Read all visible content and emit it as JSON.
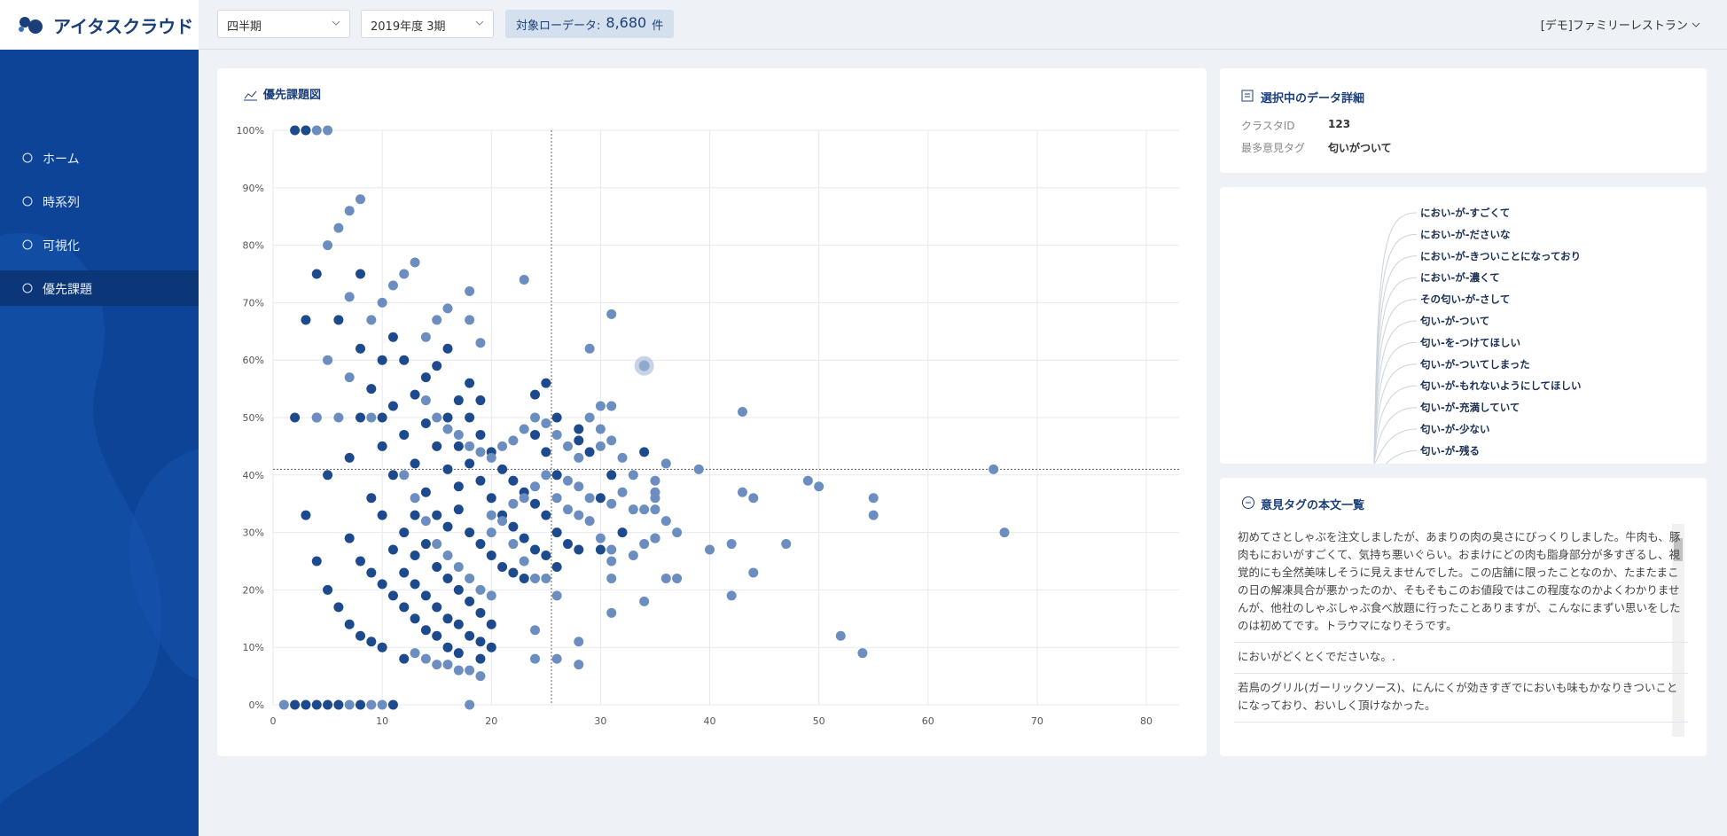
{
  "header": {
    "logo": "アイタスクラウド",
    "period_type": "四半期",
    "period": "2019年度 3期",
    "raw_label": "対象ローデータ:",
    "raw_count": "8,680",
    "raw_unit": "件",
    "store": "[デモ]ファミリーレストラン"
  },
  "nav": [
    "ホーム",
    "時系列",
    "可視化",
    "優先課題"
  ],
  "detail": {
    "title": "選択中のデータ詳細",
    "rows": [
      [
        "クラスタID",
        "123"
      ],
      [
        "最多意見タグ",
        "匂いがついて"
      ]
    ]
  },
  "tree": {
    "labels": [
      "におい-が-すごくて",
      "におい-が-ださいな",
      "におい-が-きついことになっており",
      "におい-が-濃くて",
      "その匂い-が-さして",
      "匂い-が-ついて",
      "匂い-を-つけてほしい",
      "匂い-が-ついてしまった",
      "匂い-が-もれないようにしてほしい",
      "匂い-が-充満していて",
      "匂い-が-少ない",
      "匂い-が-残る"
    ]
  },
  "texts": {
    "title": "意見タグの本文一覧",
    "items": [
      "初めてさとしゃぶを注文しましたが、あまりの肉の臭さにびっくりしました。牛肉も、豚肉もにおいがすごくて、気持ち悪いぐらい。おまけにどの肉も脂身部分が多すぎるし、視覚的にも全然美味しそうに見えませんでした。この店舗に限ったことなのか、たまたまこの日の解凍具合が悪かったのか、そもそもこのお値段ではこの程度なのかよくわかりませんが、他社のしゃぶしゃぶ食べ放題に行ったことありますが、こんなにまずい思いをしたのは初めてです。トラウマになりそうです。",
      "においがどくとくでださいな。.",
      "若鳥のグリル(ガーリックソース)、にんにくが効きすぎでにおいも味もかなりきついことになっており、おいしく頂けなかった。"
    ]
  },
  "chart_data": {
    "type": "scatter",
    "title": "優先課題図",
    "xlim": [
      0,
      83
    ],
    "xticks": [
      0,
      10,
      20,
      30,
      40,
      50,
      60,
      70,
      80
    ],
    "ylim": [
      0,
      100
    ],
    "yticks": [
      {
        "value": 0,
        "label": "0%"
      },
      {
        "value": 10,
        "label": "10%"
      },
      {
        "value": 20,
        "label": "20%"
      },
      {
        "value": 30,
        "label": "30%"
      },
      {
        "value": 40,
        "label": "40%"
      },
      {
        "value": 50,
        "label": "50%"
      },
      {
        "value": 60,
        "label": "60%"
      },
      {
        "value": 70,
        "label": "70%"
      },
      {
        "value": 80,
        "label": "80%"
      },
      {
        "value": 90,
        "label": "90%"
      },
      {
        "value": 100,
        "label": "100%"
      }
    ],
    "grid": true,
    "x_reference": 25.5,
    "y_reference": 41,
    "selected": {
      "x": 34,
      "value": 59,
      "color": "#8fa9cf"
    },
    "series": [
      {
        "color": "#1d4a8c",
        "x": [
          2,
          3,
          2,
          4,
          4,
          3,
          6,
          5,
          3,
          4,
          5,
          6,
          7,
          8,
          9,
          10,
          12,
          2,
          3,
          4,
          5,
          6,
          8,
          11,
          8,
          8,
          10,
          8,
          10,
          9,
          12,
          11,
          7,
          10,
          11,
          10,
          9,
          7,
          8,
          9,
          10,
          11,
          12,
          13,
          14,
          15,
          16,
          17,
          19,
          11,
          12,
          13,
          14,
          13,
          12,
          11,
          13,
          14,
          15,
          16,
          14,
          15,
          16,
          17,
          15,
          12,
          13,
          14,
          15,
          16,
          17,
          18,
          19,
          20,
          13,
          14,
          15,
          16,
          17,
          18,
          19,
          20,
          16,
          17,
          18,
          19,
          20,
          21,
          22,
          23,
          16,
          17,
          18,
          18,
          19,
          17,
          18,
          19,
          20,
          21,
          22,
          23,
          24,
          25,
          26,
          19,
          20,
          21,
          22,
          23,
          24,
          25,
          26,
          27,
          28,
          24,
          25,
          24,
          25,
          26,
          26,
          28,
          29,
          31,
          30,
          30,
          32,
          34,
          35,
          28
        ],
        "values": [
          100,
          100,
          50,
          50,
          75,
          67,
          67,
          40,
          33,
          25,
          20,
          17,
          14,
          12,
          11,
          10,
          8,
          0,
          0,
          0,
          0,
          0,
          0,
          0,
          75,
          62,
          60,
          50,
          50,
          55,
          60,
          64,
          43,
          45,
          40,
          33,
          36,
          29,
          25,
          23,
          21,
          19,
          17,
          15,
          13,
          12,
          10,
          9,
          8,
          27,
          30,
          33,
          37,
          42,
          47,
          52,
          54,
          57,
          59,
          62,
          49,
          45,
          41,
          38,
          33,
          23,
          21,
          19,
          17,
          15,
          14,
          12,
          11,
          10,
          26,
          28,
          24,
          22,
          20,
          18,
          16,
          14,
          31,
          34,
          30,
          28,
          26,
          24,
          23,
          22,
          50,
          53,
          50,
          56,
          53,
          45,
          42,
          39,
          36,
          33,
          31,
          29,
          27,
          26,
          24,
          47,
          44,
          41,
          39,
          37,
          35,
          33,
          30,
          28,
          27,
          54,
          56,
          47,
          44,
          40,
          50,
          46,
          44,
          40,
          36,
          27,
          30,
          44,
          29,
          48
        ]
      },
      {
        "color": "#6b8dbf",
        "x": [
          4,
          5,
          5,
          6,
          7,
          8,
          7,
          9,
          11,
          12,
          13,
          10,
          14,
          15,
          16,
          18,
          18,
          19,
          23,
          4,
          6,
          5,
          7,
          9,
          14,
          15,
          16,
          17,
          18,
          19,
          20,
          21,
          22,
          23,
          24,
          25,
          26,
          27,
          28,
          29,
          30,
          31,
          31,
          29,
          30,
          31,
          32,
          33,
          35,
          36,
          39,
          35,
          32,
          31,
          33,
          34,
          35,
          35,
          36,
          37,
          40,
          42,
          43,
          44,
          49,
          50,
          55,
          55,
          47,
          43,
          66,
          67,
          30,
          31,
          33,
          34,
          35,
          31,
          31,
          36,
          37,
          42,
          44,
          26,
          31,
          34,
          28,
          24,
          24,
          26,
          28,
          52,
          54,
          18,
          19,
          18,
          1,
          7,
          9,
          10,
          12,
          13,
          14,
          15,
          16,
          17,
          18,
          19,
          20,
          21,
          22,
          23,
          24,
          25,
          26,
          27,
          28,
          29,
          30,
          27,
          28,
          29,
          22,
          23,
          24,
          25,
          17,
          16,
          15,
          14,
          13,
          20,
          20
        ],
        "values": [
          100,
          100,
          80,
          83,
          86,
          88,
          71,
          67,
          73,
          75,
          77,
          70,
          64,
          67,
          69,
          72,
          67,
          63,
          74,
          50,
          50,
          60,
          57,
          50,
          53,
          50,
          48,
          47,
          45,
          44,
          43,
          45,
          46,
          48,
          50,
          49,
          47,
          45,
          43,
          50,
          52,
          52,
          68,
          62,
          48,
          46,
          43,
          40,
          39,
          42,
          41,
          37,
          37,
          35,
          34,
          34,
          36,
          34,
          32,
          30,
          27,
          28,
          37,
          36,
          39,
          38,
          36,
          33,
          28,
          51,
          41,
          30,
          29,
          27,
          26,
          28,
          29,
          25,
          22,
          22,
          22,
          19,
          23,
          19,
          16,
          18,
          11,
          13,
          8,
          8,
          7,
          12,
          9,
          6,
          5,
          0,
          0,
          0,
          0,
          0,
          40,
          36,
          32,
          28,
          26,
          24,
          22,
          20,
          19,
          32,
          35,
          36,
          38,
          40,
          36,
          34,
          33,
          32,
          45,
          39,
          38,
          36,
          28,
          25,
          22,
          22,
          6,
          7,
          7,
          8,
          9,
          30,
          33
        ]
      }
    ]
  }
}
